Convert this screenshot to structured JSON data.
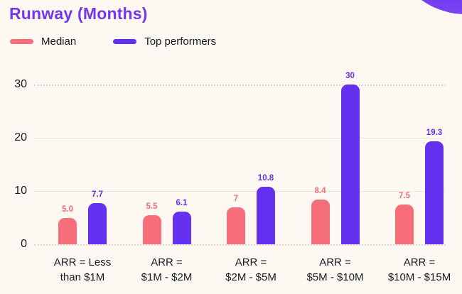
{
  "title": "Runway (Months)",
  "colors": {
    "median": "#F56E79",
    "top_performers": "#6531F0",
    "title": "#7538F0",
    "background": "#FDF8F2",
    "blob": "#6D33F1",
    "grid": "#ECE5DC",
    "axis_text": "#16191F"
  },
  "legend": {
    "items": [
      {
        "label": "Median",
        "color": "#F56E79"
      },
      {
        "label": "Top performers",
        "color": "#6531F0"
      }
    ]
  },
  "chart_data": {
    "type": "bar",
    "title": "Runway (Months)",
    "categories": [
      [
        "ARR = Less",
        "than $1M"
      ],
      [
        "ARR =",
        "$1M - $2M"
      ],
      [
        "ARR =",
        "$2M - $5M"
      ],
      [
        "ARR =",
        "$5M - $10M"
      ],
      [
        "ARR =",
        "$10M - $15M"
      ]
    ],
    "series": [
      {
        "name": "Median",
        "color": "#F56E79",
        "values": [
          5.0,
          5.5,
          7,
          8.4,
          7.5
        ],
        "labels": [
          "5.0",
          "5.5",
          "7",
          "8.4",
          "7.5"
        ]
      },
      {
        "name": "Top performers",
        "color": "#6531F0",
        "values": [
          7.7,
          6.1,
          10.8,
          30,
          19.3
        ],
        "labels": [
          "7.7",
          "6.1",
          "10.8",
          "30",
          "19.3"
        ]
      }
    ],
    "xlabel": "",
    "ylabel": "",
    "yticks": [
      0,
      10,
      20,
      30
    ],
    "ytick_labels": [
      "0",
      "10",
      "20",
      "30"
    ],
    "ylim": [
      0,
      32
    ],
    "grid": "horizontal",
    "legend_position": "top-left"
  }
}
